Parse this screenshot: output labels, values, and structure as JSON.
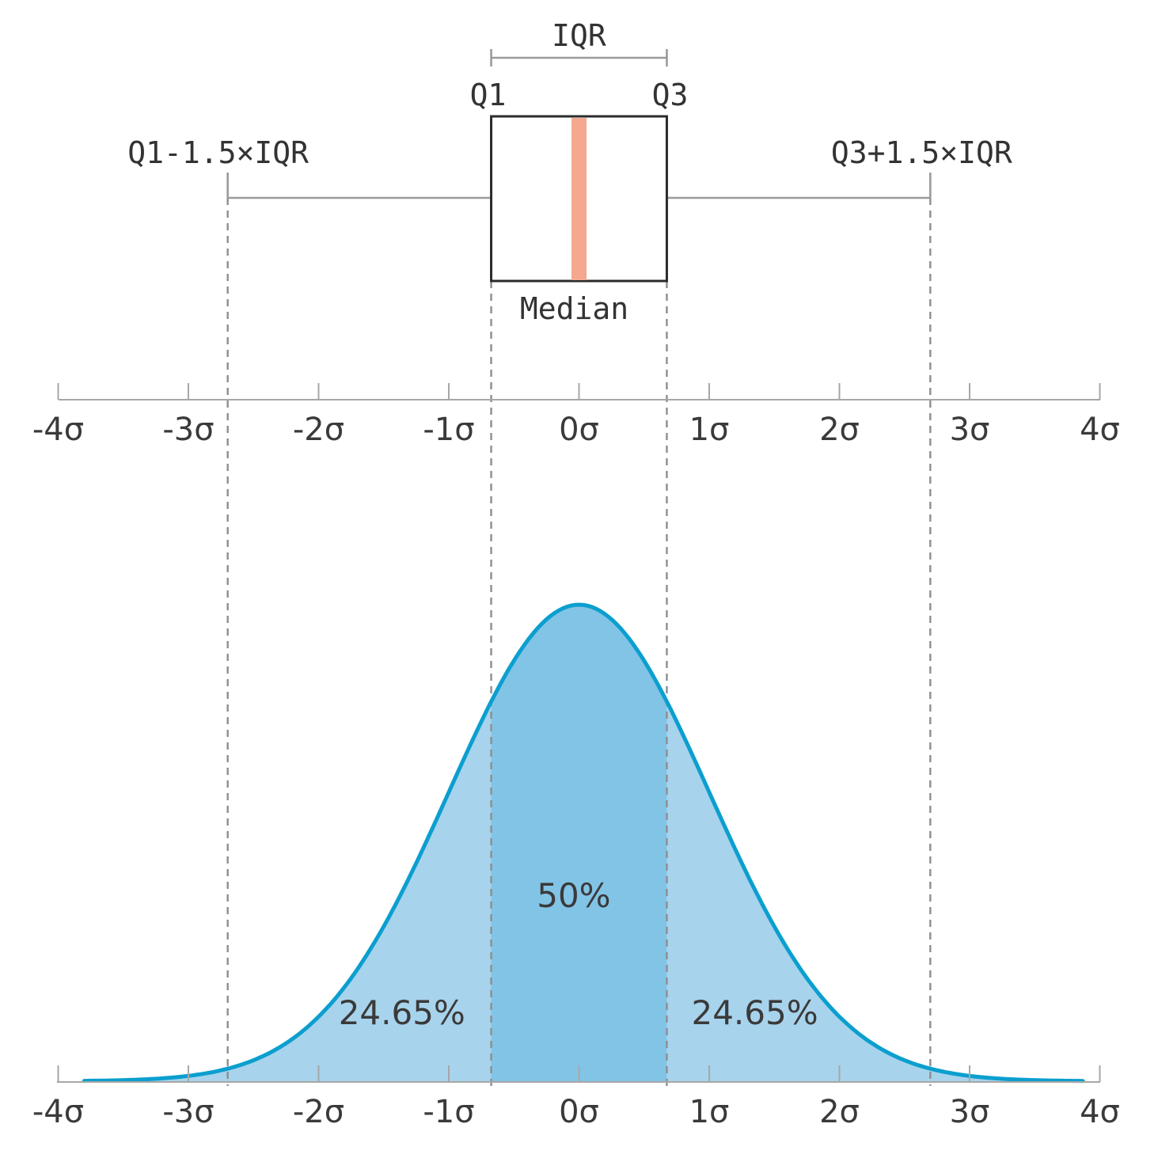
{
  "boxplot": {
    "iqr_label": "IQR",
    "q1_label": "Q1",
    "q3_label": "Q3",
    "lower_fence_label": "Q1-1.5×IQR",
    "upper_fence_label": "Q3+1.5×IQR",
    "median_label": "Median",
    "q1": -0.6745,
    "median": 0,
    "q3": 0.6745,
    "lower_fence": -2.698,
    "upper_fence": 2.698
  },
  "axis": {
    "ticks": [
      -4,
      -3,
      -2,
      -1,
      0,
      1,
      2,
      3,
      4
    ],
    "tick_labels": [
      "-4σ",
      "-3σ",
      "-2σ",
      "-1σ",
      "0σ",
      "1σ",
      "2σ",
      "3σ",
      "4σ"
    ]
  },
  "distribution": {
    "type": "normal",
    "mean": 0,
    "sd": 1,
    "x_range": [
      -3.8,
      3.87
    ],
    "regions": [
      {
        "label": "24.65%",
        "from": -2.698,
        "to": -0.6745
      },
      {
        "label": "50%",
        "from": -0.6745,
        "to": 0.6745
      },
      {
        "label": "24.65%",
        "from": 0.6745,
        "to": 2.698
      }
    ]
  },
  "colors": {
    "curve": "#0b9fcf",
    "outer_fill": "#a8d3ec",
    "inner_fill": "#82c4e6",
    "median_bar": "#f5a88e",
    "box_stroke": "#2b2b2b",
    "guide": "#8e8e8e"
  }
}
